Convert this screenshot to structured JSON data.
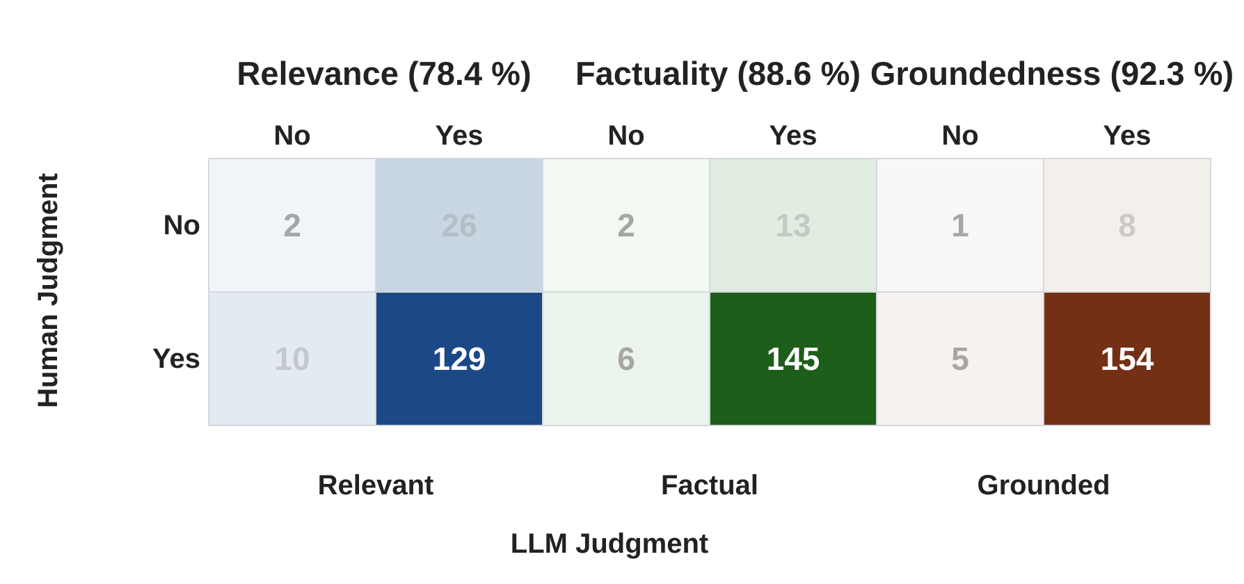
{
  "chart_data": {
    "type": "heatmap",
    "xlabel": "LLM Judgment",
    "ylabel": "Human Judgment",
    "row_labels": [
      "No",
      "Yes"
    ],
    "col_labels": [
      "No",
      "Yes"
    ],
    "panels": [
      {
        "title": "Relevance (78.4 %)",
        "sublabel": "Relevant",
        "matrix": [
          [
            2,
            26
          ],
          [
            10,
            129
          ]
        ],
        "colors": {
          "low": "#f4f8fb",
          "high": "#1b4886"
        }
      },
      {
        "title": "Factuality (88.6 %)",
        "sublabel": "Factual",
        "matrix": [
          [
            2,
            13
          ],
          [
            6,
            145
          ]
        ],
        "colors": {
          "low": "#f4fbf4",
          "high": "#1d5e1a"
        }
      },
      {
        "title": "Groundedness (92.3 %)",
        "sublabel": "Grounded",
        "matrix": [
          [
            1,
            8
          ],
          [
            5,
            154
          ]
        ],
        "colors": {
          "low": "#faf9f7",
          "high": "#743015"
        }
      }
    ],
    "text_colors": {
      "dark": "#a6a6a6",
      "light": "#ffffff",
      "axis": "#222222",
      "grid": "#d4d8dc"
    }
  }
}
